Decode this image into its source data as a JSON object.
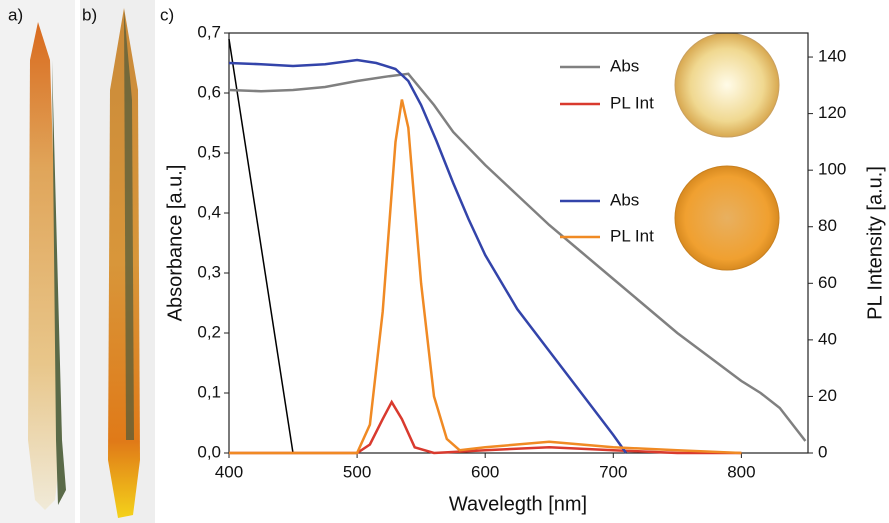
{
  "panel_labels": [
    "a)",
    "b)",
    "c)"
  ],
  "chart_data": {
    "type": "line",
    "x_label": "Wavelegth [nm]",
    "y_label": "Absorbance [a.u.]",
    "y2_label": "PL Intensity [a.u.]",
    "xlim": [
      400,
      852
    ],
    "xticks": [
      400,
      500,
      600,
      700,
      800
    ],
    "ylim": [
      0,
      0.7
    ],
    "yticks": [
      {
        "value": 0,
        "label": "0,0"
      },
      {
        "value": 0.1,
        "label": "0,1"
      },
      {
        "value": 0.2,
        "label": "0,2"
      },
      {
        "value": 0.3,
        "label": "0,3"
      },
      {
        "value": 0.4,
        "label": "0,4"
      },
      {
        "value": 0.5,
        "label": "0,5"
      },
      {
        "value": 0.6,
        "label": "0,6"
      },
      {
        "value": 0.7,
        "label": "0,7"
      }
    ],
    "y2lim": [
      0,
      148.5
    ],
    "y2ticks": [
      0,
      20,
      40,
      60,
      80,
      100,
      120,
      140
    ],
    "series": [
      {
        "name": "Abs",
        "color": "#808080",
        "axis": "y",
        "x": [
          400,
          425,
          450,
          475,
          500,
          525,
          540,
          560,
          575,
          600,
          625,
          650,
          675,
          700,
          725,
          750,
          775,
          800,
          815,
          830,
          850
        ],
        "values": [
          0.605,
          0.603,
          0.605,
          0.61,
          0.62,
          0.628,
          0.632,
          0.58,
          0.535,
          0.48,
          0.43,
          0.38,
          0.335,
          0.29,
          0.245,
          0.2,
          0.16,
          0.12,
          0.1,
          0.075,
          0.02
        ]
      },
      {
        "name": "PL Int",
        "color": "#d93a2e",
        "axis": "y2",
        "x": [
          400,
          500,
          510,
          520,
          527,
          535,
          545,
          560,
          600,
          650,
          700,
          750,
          800
        ],
        "values": [
          0,
          0,
          3,
          12,
          18,
          12,
          2,
          0,
          1,
          2,
          1,
          0,
          0
        ]
      },
      {
        "name": "Abs",
        "color": "#3344aa",
        "axis": "y",
        "x": [
          400,
          425,
          450,
          475,
          500,
          515,
          530,
          540,
          550,
          562,
          575,
          587,
          600,
          625,
          650,
          675,
          700,
          710
        ],
        "values": [
          0.65,
          0.648,
          0.645,
          0.648,
          0.655,
          0.65,
          0.64,
          0.62,
          0.58,
          0.52,
          0.45,
          0.39,
          0.33,
          0.24,
          0.17,
          0.1,
          0.03,
          0
        ]
      },
      {
        "name": "PL Int",
        "color": "#f08a24",
        "axis": "y2",
        "x": [
          400,
          500,
          510,
          520,
          530,
          535,
          540,
          550,
          560,
          570,
          580,
          600,
          650,
          700,
          750,
          800
        ],
        "values": [
          0,
          0,
          10,
          50,
          110,
          125,
          115,
          60,
          20,
          5,
          1,
          2,
          4,
          2,
          1,
          0
        ]
      }
    ],
    "reference_line": {
      "color": "#000000",
      "x": [
        400,
        450
      ],
      "values": [
        0.69,
        0
      ]
    }
  }
}
